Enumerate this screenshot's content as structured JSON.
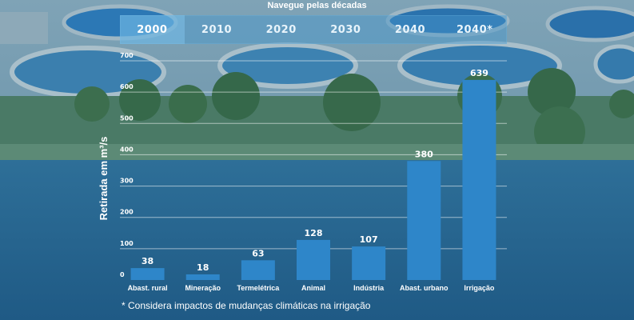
{
  "nav": {
    "title": "Navegue pelas décadas",
    "tabs": [
      "2000",
      "2010",
      "2020",
      "2030",
      "2040",
      "2040*"
    ],
    "active_index": 0
  },
  "colors": {
    "bar": "#2e86c9",
    "grid": "#ffffff",
    "text": "#ffffff",
    "tab_bg": "#4696cd",
    "tab_active_bg": "#82c8f0"
  },
  "chart_data": {
    "type": "bar",
    "ylabel": "Retirada em m³/s",
    "ylim": [
      0,
      700
    ],
    "yticks": [
      0,
      100,
      200,
      300,
      400,
      500,
      600,
      700
    ],
    "grid": true,
    "categories": [
      "Abast. rural",
      "Mineração",
      "Termelétrica",
      "Animal",
      "Indústria",
      "Abast. urbano",
      "Irrigação"
    ],
    "values": [
      38,
      18,
      63,
      128,
      107,
      380,
      639
    ],
    "data_labels": [
      "38",
      "18",
      "63",
      "128",
      "107",
      "380",
      "639"
    ]
  },
  "footnote": "* Considera impactos de mudanças climáticas na irrigação"
}
